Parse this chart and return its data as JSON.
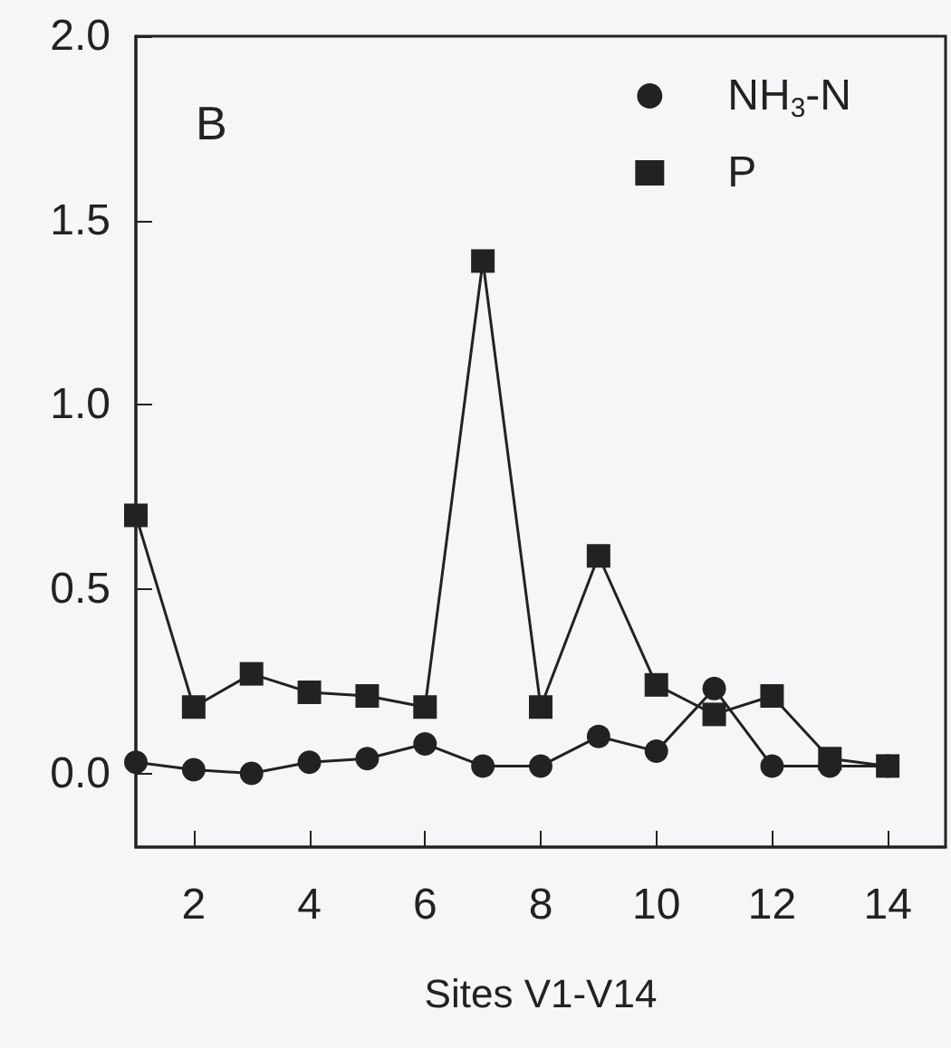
{
  "chart_data": {
    "type": "line",
    "xlabel": "Sites V1-V14",
    "annotations": [
      "B"
    ],
    "x": [
      1,
      2,
      3,
      4,
      5,
      6,
      7,
      8,
      9,
      10,
      11,
      12,
      13,
      14
    ],
    "series": [
      {
        "name": "NH$_{3}$-N",
        "color": "#222222",
        "marker": "circle",
        "values": [
          0.03,
          0.01,
          0.0,
          0.03,
          0.04,
          0.08,
          0.02,
          0.02,
          0.1,
          0.06,
          0.23,
          0.02,
          0.02,
          0.02
        ]
      },
      {
        "name": "P",
        "color": "#222222",
        "marker": "square",
        "values": [
          0.7,
          0.18,
          0.27,
          0.22,
          0.21,
          0.18,
          1.39,
          0.18,
          0.59,
          0.24,
          0.16,
          0.21,
          0.04,
          0.02
        ]
      }
    ],
    "xlim": [
      1,
      15
    ],
    "xticks": [
      2,
      4,
      6,
      8,
      10,
      12,
      14
    ],
    "ylim": [
      -0.2,
      2.0
    ],
    "yticks": [
      {
        "value": 0,
        "label": "0.0"
      },
      {
        "value": 0.5,
        "label": "0.5"
      },
      {
        "value": 1,
        "label": "1.0"
      },
      {
        "value": 1.5,
        "label": "1.5"
      },
      {
        "value": 2,
        "label": "2.0"
      }
    ],
    "grid": false,
    "legend": "top right",
    "line_style": "solid"
  }
}
